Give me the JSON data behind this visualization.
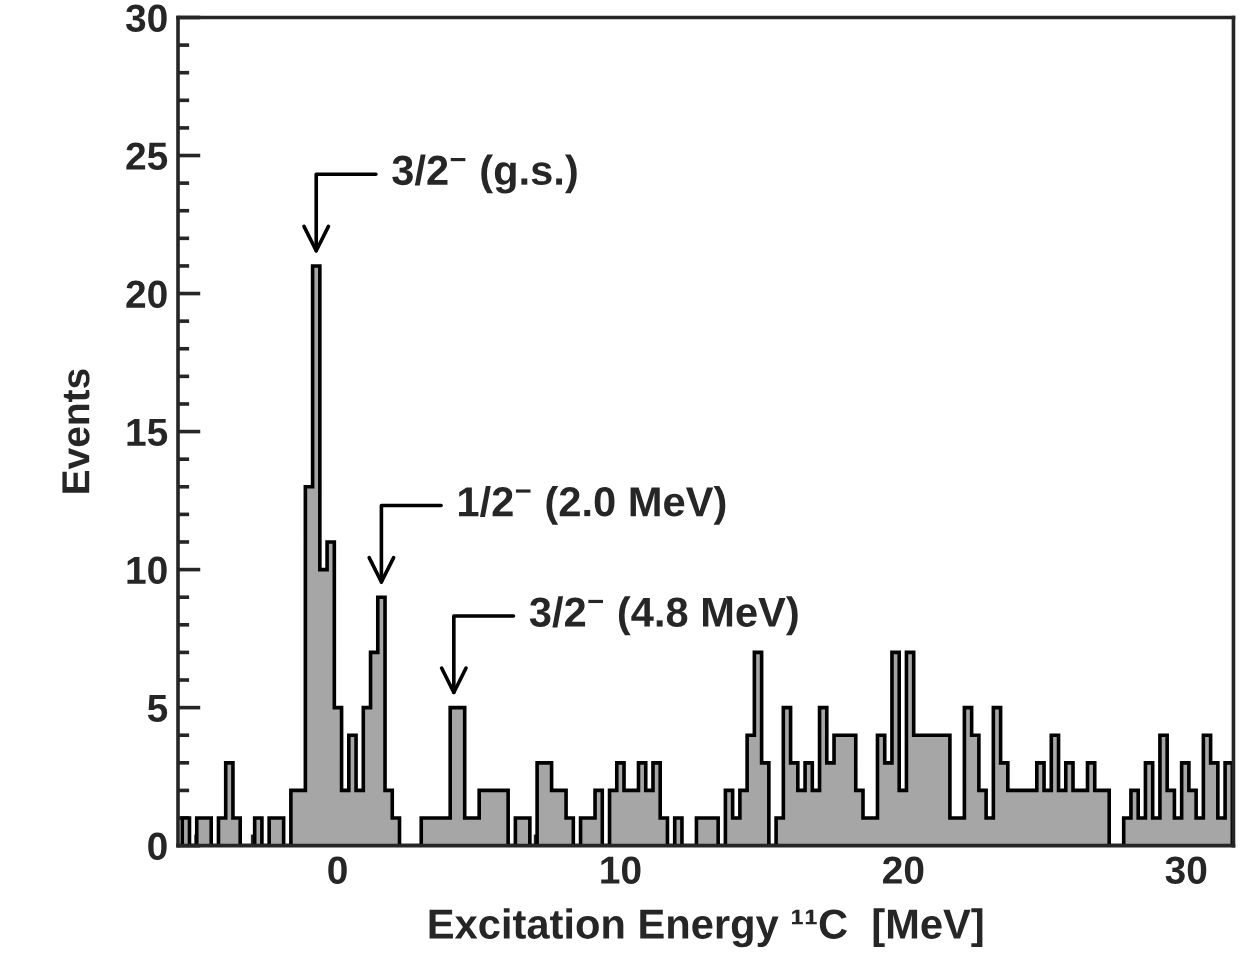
{
  "chart_data": {
    "type": "histogram",
    "xlabel": "Excitation Energy ¹¹C  [MeV]",
    "ylabel": "Events",
    "bins": [
      -5.49,
      -5.234,
      -4.978,
      -4.722,
      -4.466,
      -4.21,
      -3.954,
      -3.698,
      -3.442,
      -3.186,
      -2.93,
      -2.674,
      -2.418,
      -2.162,
      -1.906,
      -1.65,
      -1.394,
      -1.138,
      -0.882,
      -0.626,
      -0.37,
      -0.114,
      0.142,
      0.398,
      0.654,
      0.91,
      1.166,
      1.422,
      1.678,
      1.934,
      2.19,
      2.446,
      2.702,
      2.958,
      3.214,
      3.47,
      3.726,
      3.982,
      4.238,
      4.494,
      4.75,
      5.006,
      5.262,
      5.518,
      5.774,
      6.03,
      6.286,
      6.542,
      6.798,
      7.054,
      7.31,
      7.566,
      7.822,
      8.078,
      8.334,
      8.59,
      8.846,
      9.102,
      9.358,
      9.614,
      9.87,
      10.126,
      10.382,
      10.638,
      10.894,
      11.15,
      11.406,
      11.662,
      11.918,
      12.174,
      12.43,
      12.686,
      12.942,
      13.198,
      13.454,
      13.71,
      13.966,
      14.222,
      14.478,
      14.734,
      14.99,
      15.246,
      15.502,
      15.758,
      16.014,
      16.27,
      16.526,
      16.782,
      17.038,
      17.294,
      17.55,
      17.806,
      18.062,
      18.318,
      18.574,
      18.83,
      19.086,
      19.342,
      19.598,
      19.854,
      20.11,
      20.366,
      20.622,
      20.878,
      21.134,
      21.39,
      21.646,
      21.902,
      22.158,
      22.414,
      22.67,
      22.926,
      23.182,
      23.438,
      23.694,
      23.95,
      24.206,
      24.462,
      24.718,
      24.974,
      25.23,
      25.486,
      25.742,
      25.998,
      26.254,
      26.51,
      26.766,
      27.022,
      27.278,
      27.534,
      27.79,
      28.046,
      28.302,
      28.558,
      28.814,
      29.07,
      29.326,
      29.582,
      29.838,
      30.094,
      30.35,
      30.606,
      30.862,
      31.118,
      31.374,
      31.63
    ],
    "values": [
      1,
      0,
      1,
      1,
      0,
      1,
      3,
      1,
      0,
      0,
      1,
      0,
      1,
      1,
      0,
      2,
      2,
      13,
      21,
      10,
      11,
      5,
      2,
      4,
      2,
      5,
      7,
      9,
      2,
      1,
      0,
      0,
      0,
      1,
      1,
      1,
      1,
      5,
      5,
      1,
      1,
      2,
      2,
      2,
      2,
      0,
      1,
      1,
      0,
      3,
      3,
      2,
      2,
      1,
      0,
      1,
      1,
      2,
      0,
      2,
      3,
      2,
      2,
      3,
      2,
      3,
      1,
      0,
      1,
      0,
      0,
      1,
      1,
      1,
      0,
      2,
      1,
      2,
      4,
      7,
      3,
      0,
      1,
      5,
      3,
      2,
      3,
      2,
      5,
      3,
      4,
      4,
      4,
      2,
      1,
      1,
      4,
      3,
      7,
      2,
      7,
      4,
      4,
      4,
      4,
      4,
      1,
      1,
      5,
      4,
      2,
      1,
      5,
      3,
      2,
      2,
      2,
      2,
      3,
      2,
      4,
      2,
      3,
      2,
      2,
      3,
      2,
      2,
      0,
      0,
      1,
      2,
      1,
      3,
      1,
      4,
      2,
      1,
      3,
      2,
      1,
      4,
      3,
      1,
      3
    ],
    "color": "#a6a6a6",
    "xlim": [
      -5.64,
      31.67
    ],
    "xticks": [
      0,
      10,
      20,
      30
    ],
    "ylim": [
      0,
      30
    ],
    "yticks": [
      0,
      5,
      10,
      15,
      20,
      25,
      30
    ],
    "annotations": [
      {
        "text": "3/2$^{−}$ (g.s.)",
        "x": -0.754,
        "y": 21
      },
      {
        "text": "1/2$^{−}$ (2.0 MeV)",
        "x": 1.55,
        "y": 9
      },
      {
        "text": "3/2$^{−}$ (4.8 MeV)",
        "x": 4.11,
        "y": 5
      }
    ]
  }
}
